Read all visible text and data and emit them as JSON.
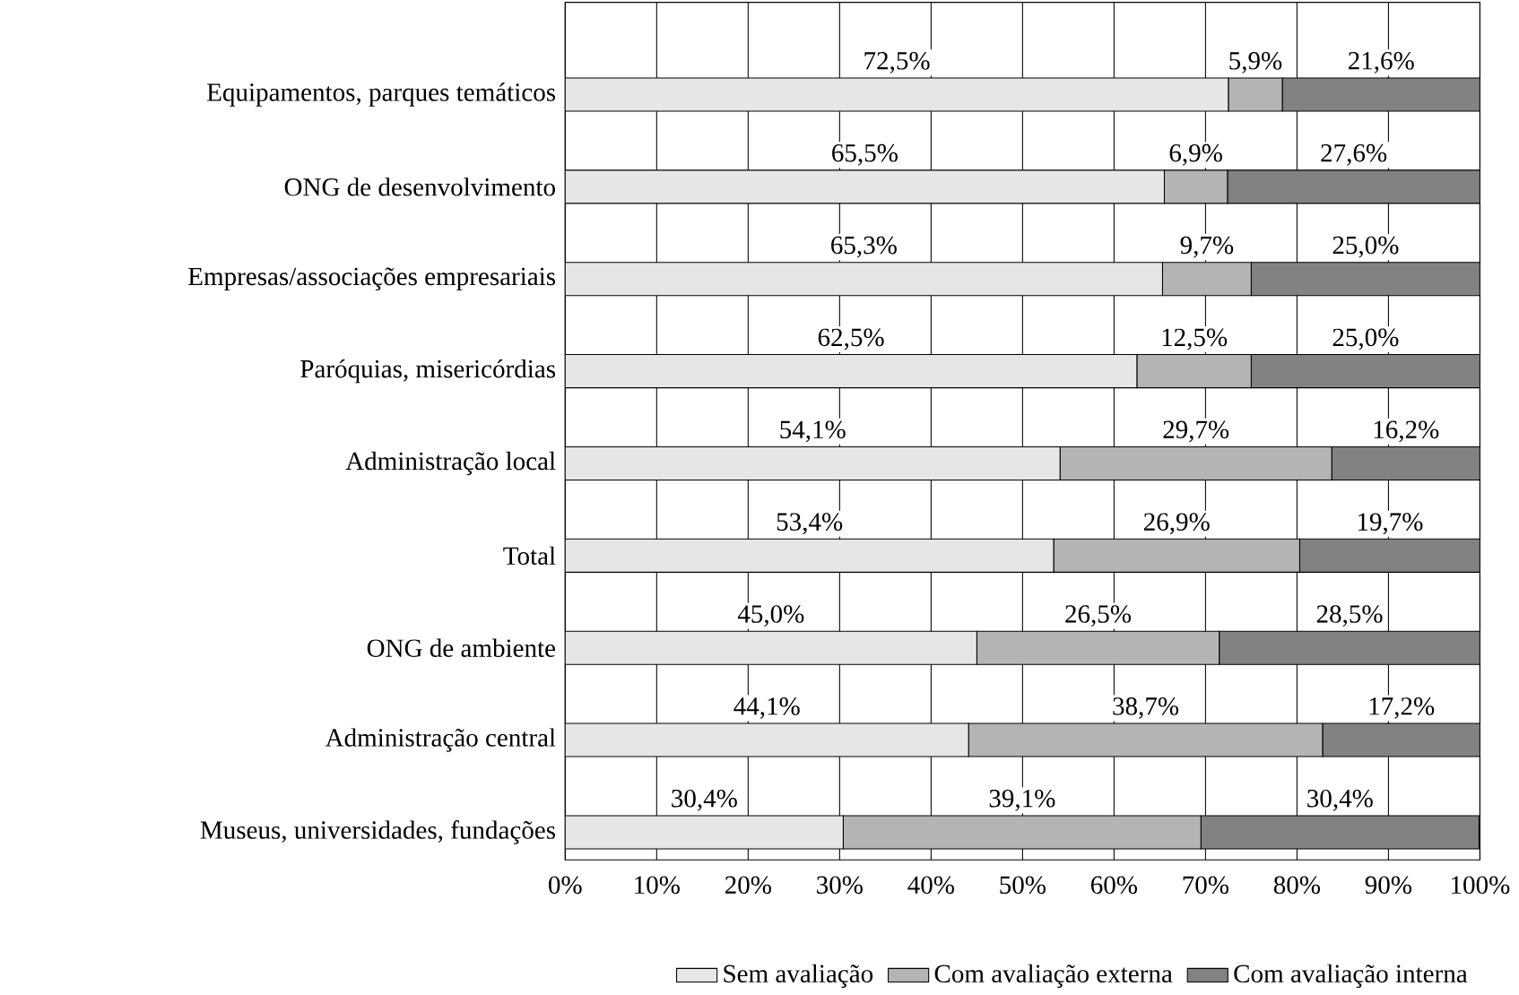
{
  "chart_data": {
    "type": "bar",
    "orientation": "horizontal",
    "stacked": true,
    "categories": [
      "Equipamentos, parques temáticos",
      "ONG de desenvolvimento",
      "Empresas/associações empresariais",
      "Paróquias, misericórdias",
      "Administração local",
      "Total",
      "ONG de ambiente",
      "Administração central",
      "Museus, universidades, fundações"
    ],
    "series": [
      {
        "name": "Sem avaliação",
        "color": "#e6e6e6",
        "values": [
          72.5,
          65.5,
          65.3,
          62.5,
          54.1,
          53.4,
          45.0,
          44.1,
          30.4
        ],
        "value_labels": [
          "72,5%",
          "65,5%",
          "65,3%",
          "62,5%",
          "54,1%",
          "53,4%",
          "45,0%",
          "44,1%",
          "30,4%"
        ]
      },
      {
        "name": "Com avaliação externa",
        "color": "#b4b4b4",
        "values": [
          5.9,
          6.9,
          9.7,
          12.5,
          29.7,
          26.9,
          26.5,
          38.7,
          39.1
        ],
        "value_labels": [
          "5,9%",
          "6,9%",
          "9,7%",
          "12,5%",
          "29,7%",
          "26,9%",
          "26,5%",
          "38,7%",
          "39,1%"
        ]
      },
      {
        "name": "Com avaliação interna",
        "color": "#828282",
        "values": [
          21.6,
          27.6,
          25.0,
          25.0,
          16.2,
          19.7,
          28.5,
          17.2,
          30.4
        ],
        "value_labels": [
          "21,6%",
          "27,6%",
          "25,0%",
          "25,0%",
          "16,2%",
          "19,7%",
          "28,5%",
          "17,2%",
          "30,4%"
        ]
      }
    ],
    "xlim": [
      0,
      100
    ],
    "xticks": [
      {
        "value": 0,
        "label": "0%"
      },
      {
        "value": 10,
        "label": "10%"
      },
      {
        "value": 20,
        "label": "20%"
      },
      {
        "value": 30,
        "label": "30%"
      },
      {
        "value": 40,
        "label": "40%"
      },
      {
        "value": 50,
        "label": "50%"
      },
      {
        "value": 60,
        "label": "60%"
      },
      {
        "value": 70,
        "label": "70%"
      },
      {
        "value": 80,
        "label": "80%"
      },
      {
        "value": 90,
        "label": "90%"
      },
      {
        "value": 100,
        "label": "100%"
      }
    ],
    "grid": "x",
    "legend": "bottom"
  }
}
